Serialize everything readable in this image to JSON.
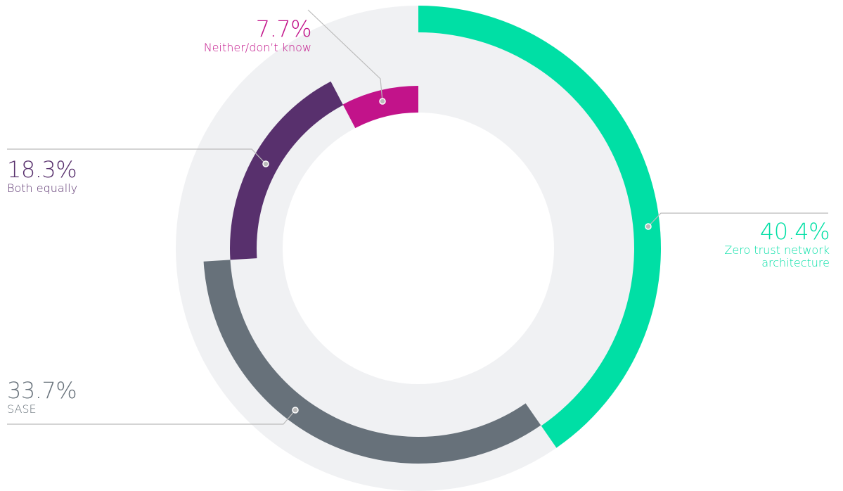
{
  "chart_data": {
    "type": "donut",
    "categories": [
      "Zero trust network architecture",
      "SASE",
      "Both equally",
      "Neither/don’t know"
    ],
    "values": [
      40.4,
      33.7,
      18.3,
      7.7
    ],
    "value_labels": [
      "40.4%",
      "33.7%",
      "18.3%",
      "7.7%"
    ],
    "colors": [
      "#00dfa5",
      "#67717a",
      "#58306d",
      "#c2138a"
    ]
  }
}
